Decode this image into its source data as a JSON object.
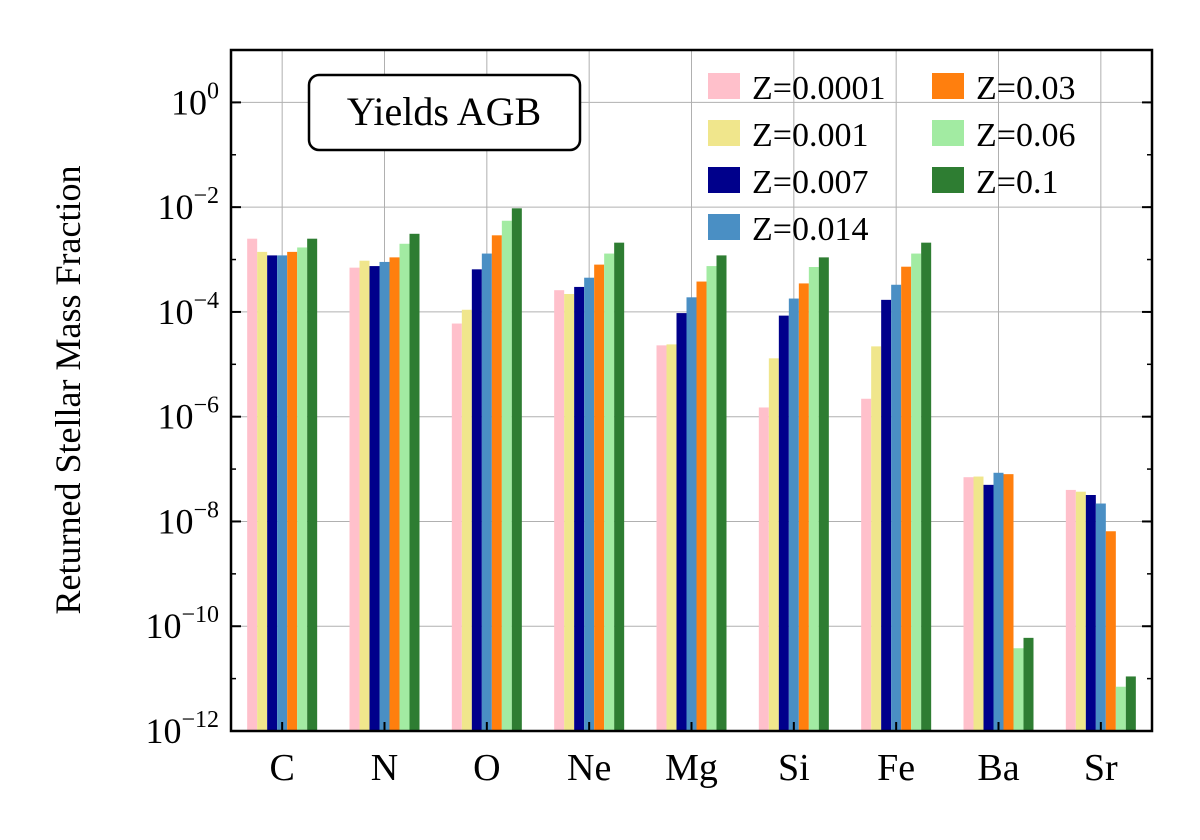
{
  "chart_data": {
    "type": "bar",
    "title": "",
    "xlabel": "",
    "ylabel": "Returned Stellar Mass Fraction",
    "yscale": "log",
    "ylim": [
      1e-12,
      10
    ],
    "yticks": [
      {
        "base": "10",
        "exp": "0"
      },
      {
        "base": "10",
        "exp": "−2"
      },
      {
        "base": "10",
        "exp": "−4"
      },
      {
        "base": "10",
        "exp": "−6"
      },
      {
        "base": "10",
        "exp": "−8"
      },
      {
        "base": "10",
        "exp": "−10"
      },
      {
        "base": "10",
        "exp": "−12"
      }
    ],
    "grid": true,
    "legend_position": "top-right",
    "annotation": "Yields AGB",
    "categories": [
      "C",
      "N",
      "O",
      "Ne",
      "Mg",
      "Si",
      "Fe",
      "Ba",
      "Sr"
    ],
    "series": [
      {
        "name": "Z=0.0001",
        "color": "#FFC0CB",
        "values": [
          0.0025,
          0.0007,
          6e-05,
          0.00026,
          2.3e-05,
          1.5e-06,
          2.2e-06,
          7e-08,
          4e-08
        ]
      },
      {
        "name": "Z=0.001",
        "color": "#F0E68C",
        "values": [
          0.0014,
          0.00095,
          0.00011,
          0.00022,
          2.4e-05,
          1.3e-05,
          2.2e-05,
          7.2e-08,
          3.7e-08
        ]
      },
      {
        "name": "Z=0.007",
        "color": "#00008B",
        "values": [
          0.0012,
          0.00075,
          0.00065,
          0.0003,
          9.5e-05,
          8.5e-05,
          0.00017,
          5e-08,
          3.2e-08
        ]
      },
      {
        "name": "Z=0.014",
        "color": "#4A8FC4",
        "values": [
          0.0012,
          0.0009,
          0.0013,
          0.00045,
          0.00019,
          0.00018,
          0.00033,
          8.5e-08,
          2.2e-08
        ]
      },
      {
        "name": "Z=0.03",
        "color": "#FF7F0E",
        "values": [
          0.0014,
          0.0011,
          0.0029,
          0.0008,
          0.00038,
          0.00035,
          0.00073,
          8e-08,
          6.5e-09
        ]
      },
      {
        "name": "Z=0.06",
        "color": "#A2EBA2",
        "values": [
          0.0017,
          0.002,
          0.0055,
          0.0013,
          0.00075,
          0.00072,
          0.0013,
          3.8e-11,
          7e-12
        ]
      },
      {
        "name": "Z=0.1",
        "color": "#2E7D32",
        "values": [
          0.0025,
          0.0031,
          0.0095,
          0.0021,
          0.0012,
          0.0011,
          0.0021,
          6e-11,
          1.1e-11
        ]
      }
    ]
  }
}
